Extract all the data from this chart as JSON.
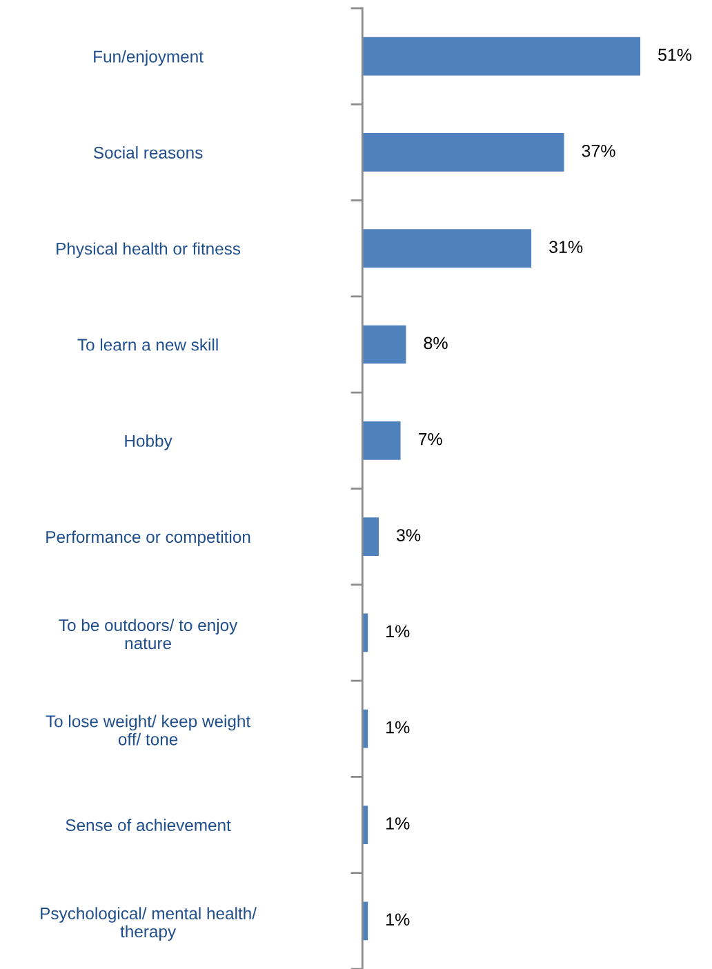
{
  "chart_data": {
    "type": "bar",
    "orientation": "horizontal",
    "categories": [
      "Fun/enjoyment",
      "Social reasons",
      "Physical health or fitness",
      "To learn a new skill",
      "Hobby",
      "Performance or competition",
      "To be outdoors/ to enjoy\nnature",
      "To lose weight/ keep weight\noff/ tone",
      "Sense of achievement",
      "Psychological/ mental health/\ntherapy"
    ],
    "values": [
      51,
      37,
      31,
      8,
      7,
      3,
      1,
      1,
      1,
      1
    ],
    "value_labels": [
      "51%",
      "37%",
      "31%",
      "8%",
      "7%",
      "3%",
      "1%",
      "1%",
      "1%",
      "1%"
    ],
    "color": "#4f81bd",
    "grid": false,
    "legend": false
  }
}
